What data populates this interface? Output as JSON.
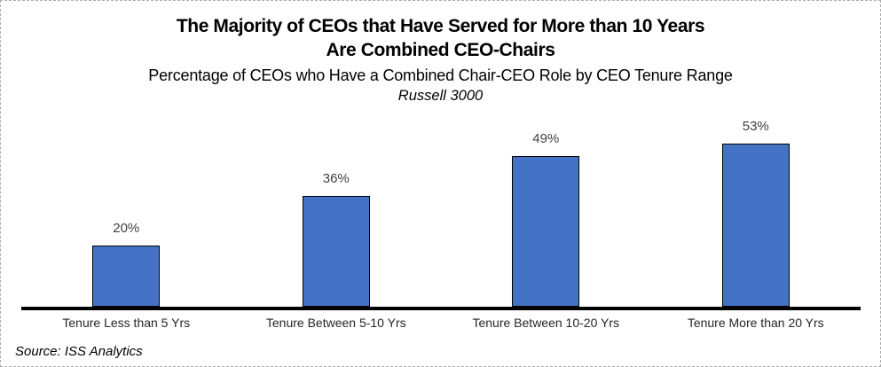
{
  "chart_data": {
    "type": "bar",
    "title_line1": "The Majority of CEOs that Have Served for More than 10 Years",
    "title_line2": "Are Combined CEO-Chairs",
    "subtitle": "Percentage of CEOs who Have a Combined Chair-CEO Role by CEO Tenure Range",
    "subtitle_note": "Russell 3000",
    "categories": [
      "Tenure Less than 5 Yrs",
      "Tenure Between 5-10 Yrs",
      "Tenure Between 10-20 Yrs",
      "Tenure More than 20 Yrs"
    ],
    "values": [
      20,
      36,
      49,
      53
    ],
    "data_labels": [
      "20%",
      "36%",
      "49%",
      "53%"
    ],
    "ylim": [
      0,
      60
    ],
    "grid": false,
    "legend": false,
    "bar_fill": "#4472C4",
    "bar_border": "#000000",
    "axis_color": "#000000",
    "data_label_color": "#404040",
    "category_label_color": "#262626",
    "source": "Source: ISS Analytics"
  }
}
